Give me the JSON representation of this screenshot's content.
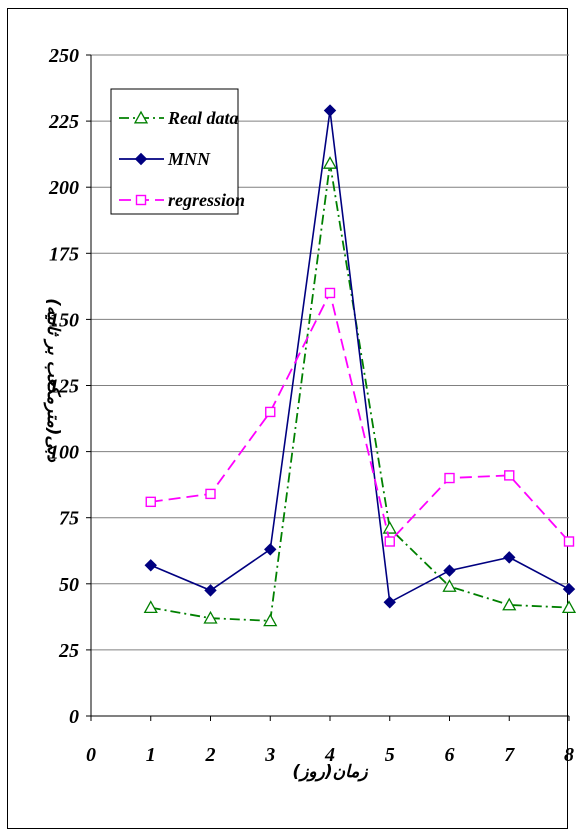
{
  "chart_data": {
    "type": "line",
    "title": "",
    "xlabel": "زمان(روز)",
    "ylabel": "دبی(مترمکعب بر ثانیه)",
    "xlim": [
      0,
      8
    ],
    "ylim": [
      0,
      250
    ],
    "x_ticks": [
      "0",
      "1",
      "2",
      "3",
      "4",
      "5",
      "6",
      "7",
      "8"
    ],
    "y_ticks": [
      "0",
      "25",
      "50",
      "75",
      "100",
      "125",
      "150",
      "175",
      "200",
      "225",
      "250"
    ],
    "grid": true,
    "legend_position": "top-left",
    "x": [
      1,
      2,
      3,
      4,
      5,
      6,
      7,
      8
    ],
    "series": [
      {
        "name": "Real data",
        "color": "#008000",
        "marker": "triangle-open",
        "dash": "dash-dot",
        "values": [
          41,
          37,
          36,
          209,
          71,
          49,
          42,
          41
        ]
      },
      {
        "name": "MNN",
        "color": "#000080",
        "marker": "diamond-filled",
        "dash": "solid",
        "values": [
          57,
          47.5,
          63,
          229,
          43,
          55,
          60,
          48
        ]
      },
      {
        "name": "regression",
        "color": "#ff00ff",
        "marker": "square-open",
        "dash": "dashed",
        "values": [
          81,
          84,
          115,
          160,
          66,
          90,
          91,
          66
        ]
      }
    ]
  }
}
